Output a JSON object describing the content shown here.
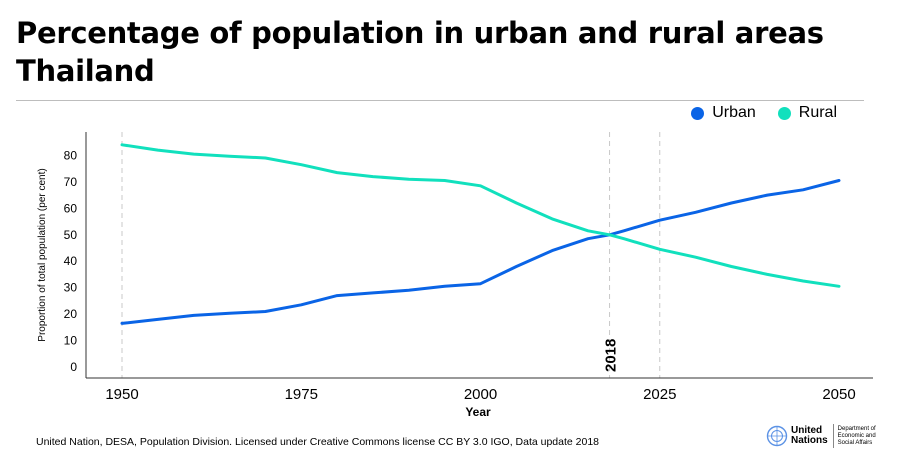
{
  "title_line1": "Percentage of population in urban and rural areas",
  "title_line2": "Thailand",
  "footer": "United Nation, DESA, Population Division. Licensed under Creative Commons license CC BY 3.0 IGO, Data update 2018",
  "logo": {
    "name_line1": "United",
    "name_line2": "Nations",
    "dept_line1": "Department of",
    "dept_line2": "Economic and",
    "dept_line3": "Social Affairs",
    "icon": "un-emblem-icon"
  },
  "chart_data": {
    "type": "line",
    "xlabel": "Year",
    "ylabel": "Proportion of total population (per cent)",
    "xlim": [
      1950,
      2050
    ],
    "ylim": [
      0,
      85
    ],
    "xticks": [
      1950,
      1975,
      2000,
      2025,
      2050
    ],
    "yticks": [
      0,
      10,
      20,
      30,
      40,
      50,
      60,
      70,
      80
    ],
    "vertical_markers": [
      {
        "x": 1950,
        "label": ""
      },
      {
        "x": 2018,
        "label": "2018"
      },
      {
        "x": 2025,
        "label": ""
      }
    ],
    "legend_position": "top-right",
    "series": [
      {
        "name": "Urban",
        "color": "#0a64e6",
        "x": [
          1950,
          1955,
          1960,
          1965,
          1970,
          1975,
          1980,
          1985,
          1990,
          1995,
          2000,
          2005,
          2010,
          2015,
          2018,
          2020,
          2025,
          2030,
          2035,
          2040,
          2045,
          2050
        ],
        "y": [
          16.5,
          18.0,
          19.5,
          20.3,
          21.0,
          23.5,
          27.0,
          28.0,
          29.0,
          30.5,
          31.5,
          38.0,
          44.0,
          48.5,
          50.0,
          51.5,
          55.5,
          58.5,
          62.0,
          65.0,
          67.0,
          70.5
        ]
      },
      {
        "name": "Rural",
        "color": "#11e0bd",
        "x": [
          1950,
          1955,
          1960,
          1965,
          1970,
          1975,
          1980,
          1985,
          1990,
          1995,
          2000,
          2005,
          2010,
          2015,
          2018,
          2020,
          2025,
          2030,
          2035,
          2040,
          2045,
          2050
        ],
        "y": [
          84.0,
          82.0,
          80.5,
          79.7,
          79.0,
          76.5,
          73.5,
          72.0,
          71.0,
          70.5,
          68.5,
          62.0,
          56.0,
          51.5,
          50.0,
          48.5,
          44.5,
          41.5,
          38.0,
          35.0,
          32.5,
          30.5
        ]
      }
    ]
  }
}
